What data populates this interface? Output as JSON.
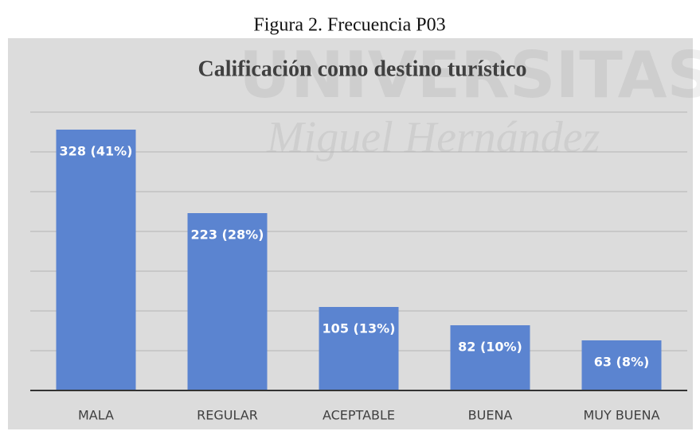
{
  "caption": "Figura 2. Frecuencia P03",
  "watermark": [
    "UNIVERSITAS",
    "Miguel Hernández"
  ],
  "chart_data": {
    "type": "bar",
    "title": "Calificación como destino turístico",
    "categories": [
      "MALA",
      "REGULAR",
      "ACEPTABLE",
      "BUENA",
      "MUY BUENA"
    ],
    "values": [
      328,
      223,
      105,
      82,
      63
    ],
    "value_labels": [
      "328 (41%)",
      "223 (28%)",
      "105 (13%)",
      "82 (10%)",
      "63 (8%)"
    ],
    "color": "#5b84d0",
    "ylim": [
      0,
      350
    ],
    "yticks": [
      0,
      50,
      100,
      150,
      200,
      250,
      300,
      350
    ],
    "grid": true
  }
}
